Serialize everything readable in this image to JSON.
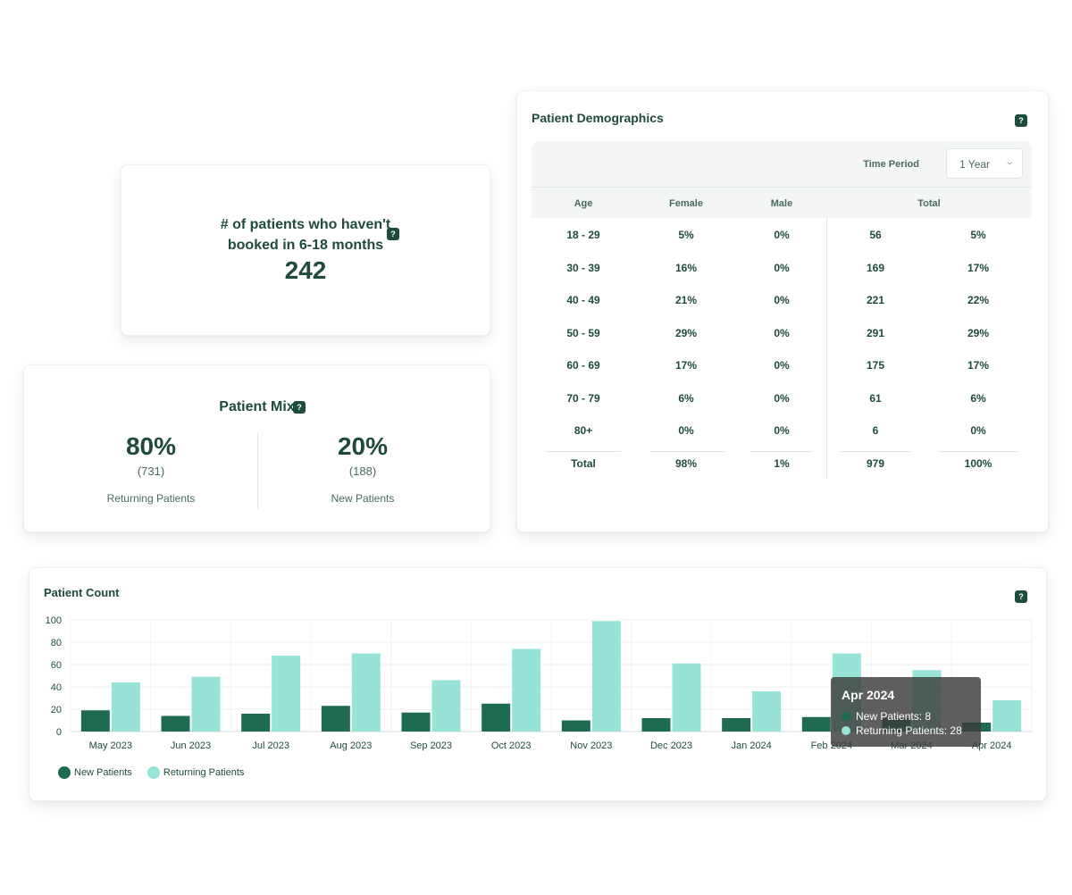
{
  "colors": {
    "new": "#1f6b52",
    "returning": "#97e3d8",
    "heading": "#1f4b3b",
    "help_bg": "#1e4d3d"
  },
  "inactive_card": {
    "label_line1": "# of patients who haven't",
    "label_line2": "booked in 6-18 months",
    "value": "242",
    "help": "?"
  },
  "mix_card": {
    "title": "Patient Mix",
    "help": "?",
    "returning": {
      "pct": "80%",
      "count": "(731)",
      "label": "Returning Patients"
    },
    "new": {
      "pct": "20%",
      "count": "(188)",
      "label": "New Patients"
    }
  },
  "demographics": {
    "title": "Patient Demographics",
    "help": "?",
    "time_period_label": "Time Period",
    "time_period_value": "1 Year",
    "headers": {
      "age": "Age",
      "female": "Female",
      "male": "Male",
      "total": "Total"
    },
    "rows": [
      {
        "age": "18 - 29",
        "female": "5%",
        "male": "0%",
        "total": "56",
        "total_pct": "5%"
      },
      {
        "age": "30 - 39",
        "female": "16%",
        "male": "0%",
        "total": "169",
        "total_pct": "17%"
      },
      {
        "age": "40 - 49",
        "female": "21%",
        "male": "0%",
        "total": "221",
        "total_pct": "22%"
      },
      {
        "age": "50 - 59",
        "female": "29%",
        "male": "0%",
        "total": "291",
        "total_pct": "29%"
      },
      {
        "age": "60 - 69",
        "female": "17%",
        "male": "0%",
        "total": "175",
        "total_pct": "17%"
      },
      {
        "age": "70 - 79",
        "female": "6%",
        "male": "0%",
        "total": "61",
        "total_pct": "6%"
      },
      {
        "age": "80+",
        "female": "0%",
        "male": "0%",
        "total": "6",
        "total_pct": "0%"
      }
    ],
    "totals": {
      "age": "Total",
      "female": "98%",
      "male": "1%",
      "total": "979",
      "total_pct": "100%"
    }
  },
  "patient_count": {
    "title": "Patient Count",
    "help": "?",
    "tooltip": {
      "title": "Apr 2024",
      "new_line": "New Patients: 8",
      "returning_line": "Returning Patients: 28"
    }
  },
  "chart_data": {
    "type": "bar",
    "title": "Patient Count",
    "categories": [
      "May 2023",
      "Jun 2023",
      "Jul 2023",
      "Aug 2023",
      "Sep 2023",
      "Oct 2023",
      "Nov 2023",
      "Dec 2023",
      "Jan 2024",
      "Feb 2024",
      "Mar 2024",
      "Apr 2024"
    ],
    "series": [
      {
        "name": "New Patients",
        "values": [
          19,
          14,
          16,
          23,
          17,
          25,
          10,
          12,
          12,
          13,
          12,
          8
        ]
      },
      {
        "name": "Returning Patients",
        "values": [
          44,
          49,
          68,
          70,
          46,
          74,
          99,
          61,
          36,
          70,
          55,
          28
        ]
      }
    ],
    "ylim": [
      0,
      100
    ],
    "yticks": [
      "0",
      "20",
      "40",
      "60",
      "80",
      "100"
    ],
    "grid": true,
    "legend": "bottom-left"
  }
}
